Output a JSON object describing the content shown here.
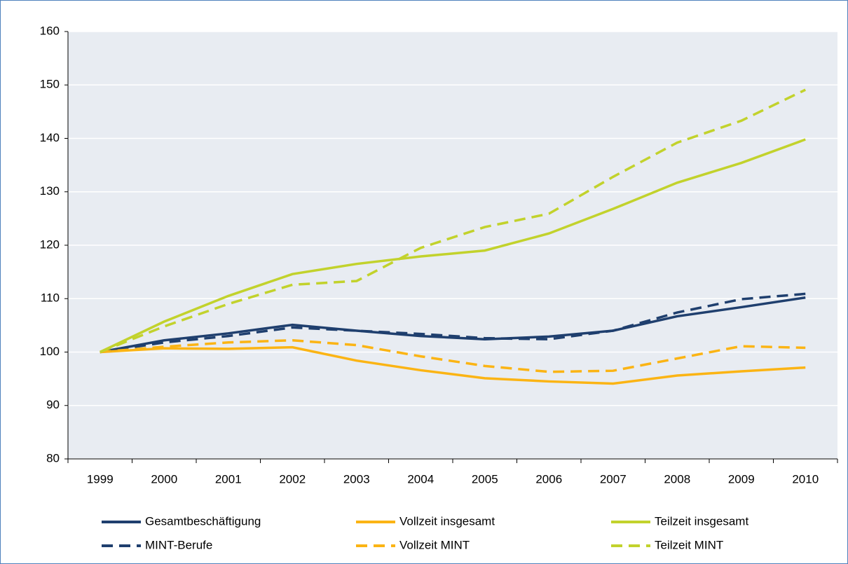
{
  "chart_data": {
    "type": "line",
    "categories": [
      "1999",
      "2000",
      "2001",
      "2002",
      "2003",
      "2004",
      "2005",
      "2006",
      "2007",
      "2008",
      "2009",
      "2010"
    ],
    "series": [
      {
        "name": "Gesamtbeschäftigung",
        "color": "#1f3f6e",
        "dashed": false,
        "values": [
          100,
          102.2,
          103.5,
          105.1,
          104,
          103,
          102.4,
          102.9,
          104,
          106.7,
          108.4,
          110.2
        ]
      },
      {
        "name": "Vollzeit insgesamt",
        "color": "#fbb414",
        "dashed": false,
        "values": [
          100,
          100.7,
          100.6,
          100.9,
          98.4,
          96.6,
          95.1,
          94.5,
          94.1,
          95.6,
          96.4,
          97.1
        ]
      },
      {
        "name": "Teilzeit insgesamt",
        "color": "#c2d22c",
        "dashed": false,
        "values": [
          100,
          105.7,
          110.5,
          114.6,
          116.5,
          117.9,
          119,
          122.2,
          126.8,
          131.7,
          135.4,
          139.8
        ]
      },
      {
        "name": "MINT-Berufe",
        "color": "#1f3f6e",
        "dashed": true,
        "values": [
          100,
          101.8,
          103,
          104.6,
          104,
          103.4,
          102.6,
          102.4,
          104,
          107.4,
          109.9,
          110.9
        ]
      },
      {
        "name": "Vollzeit MINT",
        "color": "#fbb414",
        "dashed": true,
        "values": [
          100,
          101,
          101.8,
          102.2,
          101.3,
          99.2,
          97.4,
          96.3,
          96.5,
          98.8,
          101.1,
          100.8
        ]
      },
      {
        "name": "Teilzeit MINT",
        "color": "#c2d22c",
        "dashed": true,
        "values": [
          100,
          104.8,
          109,
          112.6,
          113.3,
          119.5,
          123.4,
          125.9,
          132.8,
          139.2,
          143.3,
          149.1
        ]
      }
    ],
    "ylim": [
      80,
      160
    ],
    "yticks": [
      80,
      90,
      100,
      110,
      120,
      130,
      140,
      150,
      160
    ],
    "grid": true
  }
}
